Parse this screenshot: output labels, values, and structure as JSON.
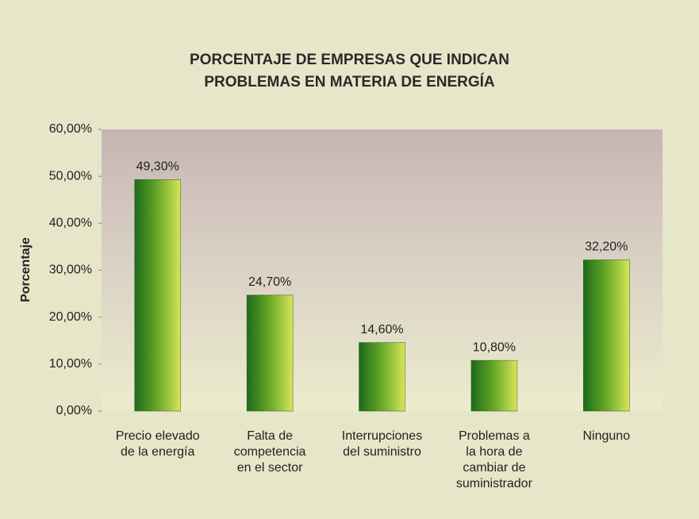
{
  "chart_data": {
    "type": "bar",
    "title": "PORCENTAJE DE EMPRESAS QUE INDICAN\nPROBLEMAS EN MATERIA DE ENERGÍA",
    "y_label": "Porcentaje",
    "categories": [
      "Precio elevado\nde la energía",
      "Falta de\ncompetencia\nen el sector",
      "Interrupciones\ndel suministro",
      "Problemas a\nla hora de\ncambiar de\nsuministrador",
      "Ninguno"
    ],
    "values": [
      49.3,
      24.7,
      14.6,
      10.8,
      32.2
    ],
    "value_labels": [
      "49,30%",
      "24,70%",
      "14,60%",
      "10,80%",
      "32,20%"
    ],
    "color": "#5fa324",
    "ylim": [
      0,
      60
    ],
    "yticks": [
      {
        "value": 0,
        "label": "0,00%"
      },
      {
        "value": 10,
        "label": "10,00%"
      },
      {
        "value": 20,
        "label": "20,00%"
      },
      {
        "value": 30,
        "label": "30,00%"
      },
      {
        "value": 40,
        "label": "40,00%"
      },
      {
        "value": 50,
        "label": "50,00%"
      },
      {
        "value": 60,
        "label": "60,00%"
      }
    ]
  }
}
